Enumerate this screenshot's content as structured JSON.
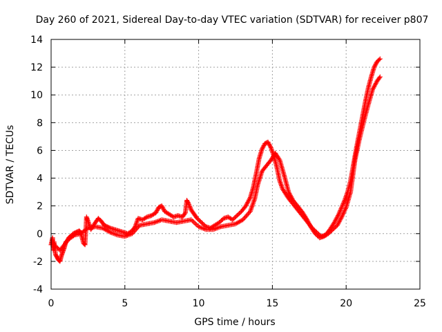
{
  "chart_data": {
    "type": "scatter",
    "title": "Day 260 of 2021, Sidereal Day-to-day VTEC variation (SDTVAR) for receiver p807",
    "xlabel": "GPS time / hours",
    "ylabel": "SDTVAR / TECUs",
    "xlim": [
      0,
      25
    ],
    "ylim": [
      -4,
      14
    ],
    "xticks": [
      0,
      5,
      10,
      15,
      20,
      25
    ],
    "yticks": [
      -4,
      -2,
      0,
      2,
      4,
      6,
      8,
      10,
      12,
      14
    ],
    "grid": true,
    "marker": "+",
    "color": "#ff0000",
    "series": [
      {
        "name": "SDTVAR",
        "points": [
          [
            0.0,
            -0.8
          ],
          [
            0.1,
            -0.3
          ],
          [
            0.15,
            -1.2
          ],
          [
            0.2,
            -0.6
          ],
          [
            0.3,
            -1.5
          ],
          [
            0.4,
            -1.7
          ],
          [
            0.5,
            -1.9
          ],
          [
            0.6,
            -2.0
          ],
          [
            0.7,
            -1.6
          ],
          [
            0.8,
            -1.3
          ],
          [
            0.9,
            -1.0
          ],
          [
            1.0,
            -0.6
          ],
          [
            1.1,
            -0.5
          ],
          [
            1.2,
            -0.3
          ],
          [
            1.3,
            -0.2
          ],
          [
            1.5,
            0.0
          ],
          [
            1.7,
            0.1
          ],
          [
            1.9,
            0.2
          ],
          [
            2.0,
            0.1
          ],
          [
            2.2,
            -0.7
          ],
          [
            2.3,
            -0.8
          ],
          [
            2.4,
            1.2
          ],
          [
            2.5,
            0.9
          ],
          [
            2.7,
            0.3
          ],
          [
            3.0,
            0.8
          ],
          [
            3.2,
            1.1
          ],
          [
            3.4,
            0.9
          ],
          [
            3.6,
            0.6
          ],
          [
            3.8,
            0.5
          ],
          [
            4.0,
            0.4
          ],
          [
            4.3,
            0.3
          ],
          [
            4.6,
            0.2
          ],
          [
            4.9,
            0.1
          ],
          [
            5.2,
            0.0
          ],
          [
            5.5,
            0.2
          ],
          [
            5.7,
            0.5
          ],
          [
            5.9,
            1.1
          ],
          [
            6.2,
            1.0
          ],
          [
            6.5,
            1.2
          ],
          [
            6.8,
            1.3
          ],
          [
            7.1,
            1.5
          ],
          [
            7.3,
            1.9
          ],
          [
            7.5,
            2.0
          ],
          [
            7.7,
            1.6
          ],
          [
            8.0,
            1.4
          ],
          [
            8.3,
            1.2
          ],
          [
            8.6,
            1.3
          ],
          [
            8.9,
            1.2
          ],
          [
            9.1,
            1.5
          ],
          [
            9.2,
            2.4
          ],
          [
            9.3,
            2.2
          ],
          [
            9.5,
            1.7
          ],
          [
            9.7,
            1.4
          ],
          [
            9.9,
            1.1
          ],
          [
            10.2,
            0.8
          ],
          [
            10.5,
            0.5
          ],
          [
            10.8,
            0.4
          ],
          [
            11.1,
            0.6
          ],
          [
            11.4,
            0.8
          ],
          [
            11.7,
            1.1
          ],
          [
            12.0,
            1.2
          ],
          [
            12.3,
            1.0
          ],
          [
            12.6,
            1.3
          ],
          [
            12.9,
            1.6
          ],
          [
            13.2,
            2.0
          ],
          [
            13.5,
            2.6
          ],
          [
            13.7,
            3.3
          ],
          [
            13.9,
            4.3
          ],
          [
            14.1,
            5.4
          ],
          [
            14.3,
            6.1
          ],
          [
            14.5,
            6.5
          ],
          [
            14.7,
            6.6
          ],
          [
            14.9,
            6.2
          ],
          [
            15.1,
            5.6
          ],
          [
            15.3,
            4.8
          ],
          [
            15.5,
            3.8
          ],
          [
            15.7,
            3.2
          ],
          [
            16.0,
            2.7
          ],
          [
            16.2,
            2.4
          ],
          [
            16.5,
            2.0
          ],
          [
            16.8,
            1.6
          ],
          [
            17.1,
            1.2
          ],
          [
            17.4,
            0.8
          ],
          [
            17.7,
            0.4
          ],
          [
            18.0,
            0.1
          ],
          [
            18.3,
            -0.2
          ],
          [
            18.6,
            -0.1
          ],
          [
            18.9,
            0.3
          ],
          [
            19.2,
            0.8
          ],
          [
            19.5,
            1.4
          ],
          [
            19.7,
            1.9
          ],
          [
            19.9,
            2.4
          ],
          [
            20.1,
            3.0
          ],
          [
            20.3,
            3.8
          ],
          [
            20.5,
            5.0
          ],
          [
            20.7,
            6.2
          ],
          [
            20.9,
            7.3
          ],
          [
            21.1,
            8.4
          ],
          [
            21.3,
            9.5
          ],
          [
            21.5,
            10.5
          ],
          [
            21.7,
            11.3
          ],
          [
            21.9,
            12.0
          ],
          [
            22.1,
            12.4
          ],
          [
            22.3,
            12.6
          ]
        ],
        "lower_branch": [
          [
            0.3,
            -0.9
          ],
          [
            0.6,
            -1.2
          ],
          [
            0.9,
            -0.8
          ],
          [
            1.2,
            -0.4
          ],
          [
            1.6,
            -0.1
          ],
          [
            2.0,
            0.0
          ],
          [
            2.5,
            0.4
          ],
          [
            3.0,
            0.5
          ],
          [
            3.5,
            0.4
          ],
          [
            4.0,
            0.1
          ],
          [
            4.5,
            -0.1
          ],
          [
            5.0,
            -0.2
          ],
          [
            5.5,
            0.0
          ],
          [
            6.0,
            0.6
          ],
          [
            6.5,
            0.7
          ],
          [
            7.0,
            0.8
          ],
          [
            7.5,
            1.0
          ],
          [
            8.0,
            0.9
          ],
          [
            8.5,
            0.8
          ],
          [
            9.0,
            0.9
          ],
          [
            9.5,
            1.0
          ],
          [
            10.0,
            0.5
          ],
          [
            10.5,
            0.3
          ],
          [
            11.0,
            0.3
          ],
          [
            11.5,
            0.5
          ],
          [
            12.0,
            0.6
          ],
          [
            12.5,
            0.7
          ],
          [
            13.0,
            1.0
          ],
          [
            13.5,
            1.6
          ],
          [
            13.8,
            2.5
          ],
          [
            14.0,
            3.5
          ],
          [
            14.3,
            4.5
          ],
          [
            14.6,
            4.9
          ],
          [
            14.9,
            5.3
          ],
          [
            15.2,
            5.8
          ],
          [
            15.5,
            5.3
          ],
          [
            15.8,
            4.2
          ],
          [
            16.1,
            3.0
          ],
          [
            16.4,
            2.4
          ],
          [
            16.7,
            2.0
          ],
          [
            17.0,
            1.6
          ],
          [
            17.3,
            1.1
          ],
          [
            17.6,
            0.5
          ],
          [
            17.9,
            0.0
          ],
          [
            18.2,
            -0.3
          ],
          [
            18.5,
            -0.2
          ],
          [
            18.8,
            0.0
          ],
          [
            19.1,
            0.3
          ],
          [
            19.4,
            0.6
          ],
          [
            19.7,
            1.2
          ],
          [
            20.0,
            1.9
          ],
          [
            20.3,
            3.0
          ],
          [
            20.6,
            5.3
          ],
          [
            20.9,
            6.8
          ],
          [
            21.2,
            8.1
          ],
          [
            21.5,
            9.3
          ],
          [
            21.8,
            10.4
          ],
          [
            22.1,
            11.0
          ],
          [
            22.3,
            11.3
          ]
        ]
      }
    ]
  }
}
